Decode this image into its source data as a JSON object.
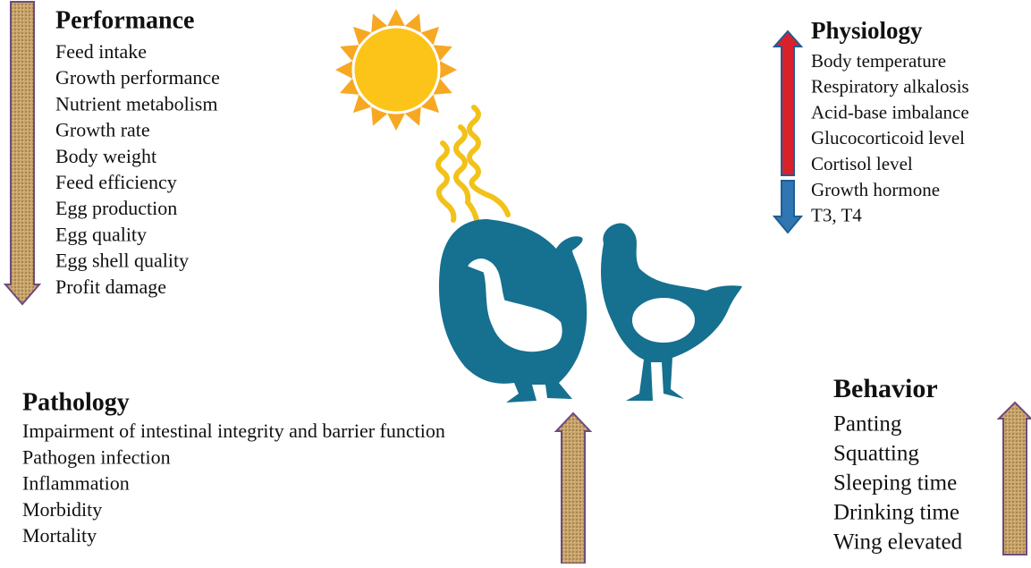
{
  "sections": [
    {
      "title": "Performance",
      "items": [
        "Feed intake",
        "Growth performance",
        "Nutrient metabolism",
        "Growth rate",
        "Body weight",
        "Feed efficiency",
        "Egg production",
        "Egg quality",
        "Egg shell quality",
        "Profit damage"
      ]
    },
    {
      "title": "Physiology",
      "items": [
        "Body temperature",
        "Respiratory alkalosis",
        "Acid-base imbalance",
        "Glucocorticoid level",
        "Cortisol level",
        "Growth hormone",
        "T3, T4"
      ]
    },
    {
      "title": "Pathology",
      "items": [
        "Impairment of intestinal integrity and barrier function",
        "Pathogen infection",
        "Inflammation",
        "Morbidity",
        "Mortality"
      ]
    },
    {
      "title": "Behavior",
      "items": [
        "Panting",
        "Squatting",
        "Sleeping time",
        "Drinking time",
        "Wing elevated"
      ]
    }
  ]
}
